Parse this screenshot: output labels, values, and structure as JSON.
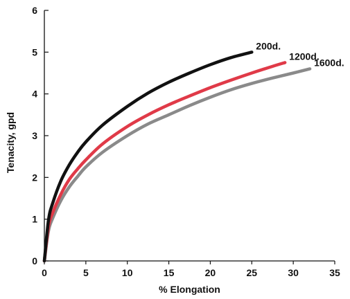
{
  "chart_data": {
    "type": "line",
    "title": "",
    "xlabel": "% Elongation",
    "ylabel": "Tenacity, gpd",
    "xlim": [
      0,
      35
    ],
    "ylim": [
      0,
      6
    ],
    "xticks": [
      "0",
      "5",
      "10",
      "15",
      "20",
      "25",
      "30",
      "35"
    ],
    "yticks": [
      "0",
      "1",
      "2",
      "3",
      "4",
      "5",
      "6"
    ],
    "grid": false,
    "legend": "inline labels at curve ends",
    "series": [
      {
        "name": "200d.",
        "color": "#111111",
        "x": [
          0,
          0.5,
          1,
          2,
          3,
          4,
          5,
          7,
          10,
          12.5,
          15,
          17.5,
          20,
          22.5,
          25
        ],
        "y": [
          0,
          0.98,
          1.38,
          1.92,
          2.3,
          2.6,
          2.85,
          3.25,
          3.7,
          4.02,
          4.28,
          4.5,
          4.7,
          4.87,
          5.0
        ]
      },
      {
        "name": "1200d.",
        "color": "#e03a48",
        "x": [
          0,
          0.5,
          1,
          2,
          3,
          4,
          5,
          7,
          10,
          12.5,
          15,
          17.5,
          20,
          22.5,
          25,
          27.5,
          29
        ],
        "y": [
          0,
          0.82,
          1.15,
          1.6,
          1.95,
          2.2,
          2.42,
          2.8,
          3.22,
          3.5,
          3.74,
          3.95,
          4.15,
          4.33,
          4.5,
          4.66,
          4.75
        ]
      },
      {
        "name": "1600d.",
        "color": "#8a8a8a",
        "x": [
          0,
          0.5,
          1,
          2,
          3,
          4,
          5,
          7,
          10,
          12.5,
          15,
          17.5,
          20,
          22.5,
          25,
          27.5,
          30,
          32
        ],
        "y": [
          0,
          0.72,
          1.02,
          1.45,
          1.77,
          2.02,
          2.25,
          2.6,
          3.0,
          3.28,
          3.5,
          3.72,
          3.92,
          4.1,
          4.25,
          4.38,
          4.5,
          4.6
        ]
      }
    ]
  }
}
